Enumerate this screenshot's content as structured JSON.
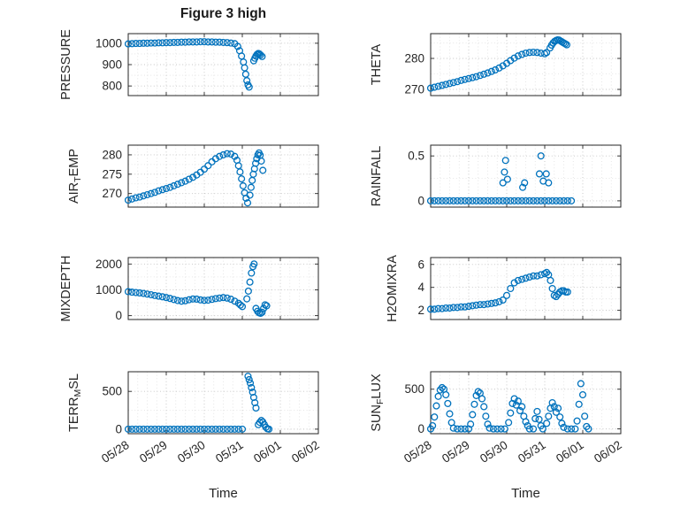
{
  "figure": {
    "title": "Figure 3 high",
    "xlabel": "Time",
    "xlim": [
      0,
      5
    ],
    "x_ticks": [
      0,
      1,
      2,
      3,
      4,
      5
    ],
    "x_tick_labels": [
      "05/28",
      "05/29",
      "05/30",
      "05/31",
      "06/01",
      "06/02"
    ],
    "marker_color": "#0072BD",
    "axis_color": "#262626",
    "text_color": "#262626",
    "grid_color": "#c4c4c4",
    "minor_grid_color": "#e0e0e0"
  },
  "chart_data": [
    {
      "id": "pressure",
      "type": "scatter",
      "ylabel": [
        {
          "t": "PRESSURE"
        }
      ],
      "yticks": [
        800,
        900,
        1000
      ],
      "yminor": [
        850,
        950
      ],
      "ylim": [
        755,
        1045
      ],
      "x": [
        0,
        0.1,
        0.2,
        0.3,
        0.4,
        0.5,
        0.6,
        0.7,
        0.8,
        0.9,
        1,
        1.1,
        1.2,
        1.3,
        1.4,
        1.5,
        1.6,
        1.7,
        1.8,
        1.9,
        2,
        2.1,
        2.2,
        2.3,
        2.4,
        2.5,
        2.6,
        2.7,
        2.8,
        2.88,
        2.93,
        2.98,
        3.03,
        3.06,
        3.09,
        3.12,
        3.15,
        3.18,
        3.3,
        3.33,
        3.36,
        3.39,
        3.42,
        3.45,
        3.48,
        3.52
      ],
      "y": [
        997,
        998,
        999,
        999,
        1000,
        1000,
        1001,
        1001,
        1002,
        1002,
        1003,
        1003,
        1004,
        1004,
        1005,
        1005,
        1006,
        1006,
        1006,
        1007,
        1007,
        1006,
        1006,
        1005,
        1005,
        1004,
        1003,
        1001,
        998,
        985,
        965,
        940,
        912,
        885,
        855,
        825,
        805,
        795,
        918,
        930,
        940,
        948,
        952,
        950,
        945,
        938
      ]
    },
    {
      "id": "theta",
      "type": "scatter",
      "ylabel": [
        {
          "t": "THETA"
        }
      ],
      "yticks": [
        270,
        280
      ],
      "yminor": [
        275,
        285
      ],
      "ylim": [
        268,
        288
      ],
      "x": [
        0,
        0.1,
        0.2,
        0.3,
        0.4,
        0.5,
        0.6,
        0.7,
        0.8,
        0.9,
        1,
        1.1,
        1.2,
        1.3,
        1.4,
        1.5,
        1.6,
        1.7,
        1.8,
        1.9,
        2,
        2.1,
        2.2,
        2.3,
        2.4,
        2.5,
        2.6,
        2.7,
        2.8,
        2.9,
        3,
        3.05,
        3.14,
        3.18,
        3.22,
        3.26,
        3.3,
        3.34,
        3.38,
        3.42,
        3.46,
        3.5,
        3.54,
        3.58
      ],
      "y": [
        270.4,
        270.7,
        271,
        271.3,
        271.6,
        271.9,
        272.2,
        272.5,
        272.9,
        273.2,
        273.5,
        273.8,
        274.1,
        274.5,
        274.9,
        275.3,
        275.8,
        276.3,
        276.9,
        277.6,
        278.4,
        279.3,
        280.1,
        280.8,
        281.3,
        281.7,
        281.9,
        282,
        281.9,
        281.7,
        281.5,
        281.9,
        283.4,
        284.3,
        285,
        285.5,
        285.8,
        286,
        285.9,
        285.6,
        285.3,
        285,
        284.7,
        284.4
      ]
    },
    {
      "id": "air-temp",
      "type": "scatter",
      "ylabel": [
        {
          "t": "AIR"
        },
        {
          "t": "T",
          "sub": true
        },
        {
          "t": "EMP"
        }
      ],
      "yticks": [
        270,
        275,
        280
      ],
      "yminor": [
        267.5,
        272.5,
        277.5
      ],
      "ylim": [
        266.5,
        282.5
      ],
      "x": [
        0,
        0.1,
        0.2,
        0.3,
        0.4,
        0.5,
        0.6,
        0.7,
        0.8,
        0.9,
        1,
        1.1,
        1.2,
        1.3,
        1.4,
        1.5,
        1.6,
        1.7,
        1.8,
        1.9,
        2,
        2.1,
        2.2,
        2.3,
        2.4,
        2.5,
        2.6,
        2.7,
        2.8,
        2.86,
        2.9,
        2.94,
        2.98,
        3.02,
        3.06,
        3.1,
        3.14,
        3.2,
        3.23,
        3.26,
        3.29,
        3.32,
        3.35,
        3.38,
        3.41,
        3.44,
        3.47,
        3.5,
        3.54
      ],
      "y": [
        268.3,
        268.6,
        268.9,
        269.1,
        269.4,
        269.7,
        270,
        270.3,
        270.7,
        271,
        271.3,
        271.6,
        272,
        272.4,
        272.8,
        273.2,
        273.7,
        274.2,
        274.8,
        275.5,
        276.3,
        277.2,
        278.2,
        279,
        279.6,
        280,
        280.3,
        280.2,
        279.6,
        278.6,
        277.2,
        275.6,
        273.8,
        272,
        270.2,
        268.8,
        267.6,
        269.6,
        271.6,
        273.4,
        275,
        276.4,
        277.8,
        279,
        280,
        280.5,
        279.9,
        278.4,
        276
      ]
    },
    {
      "id": "rainfall",
      "type": "scatter",
      "ylabel": [
        {
          "t": "RAINFALL"
        }
      ],
      "yticks": [
        0,
        0.5
      ],
      "yminor": [
        0.25
      ],
      "ylim": [
        -0.07,
        0.62
      ],
      "x": [
        0,
        0.1,
        0.2,
        0.3,
        0.4,
        0.5,
        0.6,
        0.7,
        0.8,
        0.9,
        1,
        1.1,
        1.2,
        1.3,
        1.4,
        1.5,
        1.6,
        1.7,
        1.8,
        1.9,
        2,
        2.1,
        2.2,
        2.3,
        2.4,
        2.5,
        2.6,
        2.7,
        2.8,
        2.9,
        3,
        3.1,
        3.2,
        3.3,
        3.4,
        3.5,
        3.6,
        3.7,
        1.9,
        1.94,
        1.97,
        2.02,
        2.42,
        2.47,
        2.86,
        2.9,
        2.96,
        3.04,
        3.1
      ],
      "y": [
        0,
        0,
        0,
        0,
        0,
        0,
        0,
        0,
        0,
        0,
        0,
        0,
        0,
        0,
        0,
        0,
        0,
        0,
        0,
        0,
        0,
        0,
        0,
        0,
        0,
        0,
        0,
        0,
        0,
        0,
        0,
        0,
        0,
        0,
        0,
        0,
        0,
        0,
        0.2,
        0.32,
        0.45,
        0.24,
        0.15,
        0.2,
        0.3,
        0.5,
        0.22,
        0.3,
        0.2
      ]
    },
    {
      "id": "mixdepth",
      "type": "scatter",
      "ylabel": [
        {
          "t": "MIXDEPTH"
        }
      ],
      "yticks": [
        0,
        1000,
        2000
      ],
      "yminor": [
        500,
        1500
      ],
      "ylim": [
        -150,
        2250
      ],
      "x": [
        0,
        0.1,
        0.2,
        0.3,
        0.4,
        0.5,
        0.6,
        0.7,
        0.8,
        0.9,
        1,
        1.1,
        1.2,
        1.3,
        1.4,
        1.5,
        1.6,
        1.7,
        1.8,
        1.9,
        2,
        2.1,
        2.2,
        2.3,
        2.4,
        2.5,
        2.6,
        2.7,
        2.8,
        2.9,
        2.95,
        3,
        3.12,
        3.16,
        3.2,
        3.24,
        3.28,
        3.31,
        3.36,
        3.4,
        3.44,
        3.48,
        3.52,
        3.56,
        3.6,
        3.64
      ],
      "y": [
        930,
        910,
        895,
        880,
        860,
        835,
        810,
        780,
        755,
        730,
        700,
        665,
        625,
        585,
        560,
        575,
        615,
        645,
        640,
        610,
        590,
        600,
        630,
        660,
        680,
        700,
        680,
        635,
        560,
        480,
        410,
        350,
        650,
        950,
        1300,
        1650,
        1900,
        2000,
        280,
        170,
        110,
        90,
        130,
        280,
        420,
        380
      ]
    },
    {
      "id": "h2omixra",
      "type": "scatter",
      "ylabel": [
        {
          "t": "H2OMIXRA"
        }
      ],
      "yticks": [
        2,
        4,
        6
      ],
      "yminor": [
        3,
        5
      ],
      "ylim": [
        1.2,
        6.6
      ],
      "x": [
        0,
        0.1,
        0.2,
        0.3,
        0.4,
        0.5,
        0.6,
        0.7,
        0.8,
        0.9,
        1,
        1.1,
        1.2,
        1.3,
        1.4,
        1.5,
        1.6,
        1.7,
        1.8,
        1.9,
        2,
        2.1,
        2.2,
        2.3,
        2.4,
        2.5,
        2.6,
        2.7,
        2.8,
        2.9,
        3,
        3.05,
        3.1,
        3.15,
        3.2,
        3.25,
        3.3,
        3.35,
        3.4,
        3.45,
        3.5,
        3.55,
        3.6
      ],
      "y": [
        2.1,
        2.1,
        2.15,
        2.15,
        2.2,
        2.2,
        2.25,
        2.25,
        2.3,
        2.3,
        2.35,
        2.4,
        2.45,
        2.5,
        2.5,
        2.55,
        2.6,
        2.65,
        2.75,
        2.9,
        3.3,
        3.9,
        4.4,
        4.6,
        4.7,
        4.8,
        4.9,
        5,
        5,
        5.1,
        5.2,
        5.3,
        5.1,
        4.6,
        3.9,
        3.3,
        3.2,
        3.4,
        3.6,
        3.7,
        3.7,
        3.6,
        3.6
      ]
    },
    {
      "id": "terr-msl",
      "type": "scatter",
      "ylabel": [
        {
          "t": "TERR"
        },
        {
          "t": "M",
          "sub": true
        },
        {
          "t": "SL"
        }
      ],
      "yticks": [
        0,
        500
      ],
      "yminor": [
        250
      ],
      "ylim": [
        -60,
        760
      ],
      "x": [
        0,
        0.1,
        0.2,
        0.3,
        0.4,
        0.5,
        0.6,
        0.7,
        0.8,
        0.9,
        1,
        1.1,
        1.2,
        1.3,
        1.4,
        1.5,
        1.6,
        1.7,
        1.8,
        1.9,
        2,
        2.1,
        2.2,
        2.3,
        2.4,
        2.5,
        2.6,
        2.7,
        2.8,
        2.9,
        3,
        3.15,
        3.18,
        3.21,
        3.24,
        3.27,
        3.3,
        3.33,
        3.36,
        3.42,
        3.46,
        3.5,
        3.54,
        3.58,
        3.62,
        3.66,
        3.7
      ],
      "y": [
        0,
        0,
        0,
        0,
        0,
        0,
        0,
        0,
        0,
        0,
        0,
        0,
        0,
        0,
        0,
        0,
        0,
        0,
        0,
        0,
        0,
        0,
        0,
        0,
        0,
        0,
        0,
        0,
        0,
        0,
        0,
        700,
        655,
        610,
        550,
        490,
        420,
        350,
        280,
        60,
        90,
        115,
        95,
        60,
        25,
        5,
        0
      ]
    },
    {
      "id": "sun-flux",
      "type": "scatter",
      "ylabel": [
        {
          "t": "SUN"
        },
        {
          "t": "F",
          "sub": true
        },
        {
          "t": "LUX"
        }
      ],
      "yticks": [
        0,
        500
      ],
      "yminor": [
        250
      ],
      "ylim": [
        -60,
        720
      ],
      "x": [
        0,
        0.05,
        0.1,
        0.15,
        0.2,
        0.25,
        0.3,
        0.35,
        0.4,
        0.45,
        0.5,
        0.55,
        0.6,
        0.7,
        0.8,
        0.9,
        1,
        1.05,
        1.1,
        1.15,
        1.2,
        1.25,
        1.3,
        1.35,
        1.4,
        1.45,
        1.5,
        1.55,
        1.65,
        1.75,
        1.85,
        1.95,
        2.05,
        2.1,
        2.15,
        2.2,
        2.25,
        2.3,
        2.35,
        2.4,
        2.45,
        2.5,
        2.55,
        2.6,
        2.7,
        2.75,
        2.8,
        2.85,
        2.9,
        2.95,
        3.05,
        3.1,
        3.15,
        3.2,
        3.25,
        3.3,
        3.35,
        3.4,
        3.45,
        3.5,
        3.6,
        3.7,
        3.8,
        3.85,
        3.9,
        3.95,
        4,
        4.05,
        4.1,
        4.15
      ],
      "y": [
        0,
        40,
        150,
        290,
        410,
        490,
        520,
        500,
        430,
        320,
        190,
        80,
        10,
        0,
        0,
        0,
        0,
        60,
        180,
        310,
        420,
        470,
        450,
        380,
        280,
        160,
        60,
        10,
        0,
        0,
        0,
        0,
        80,
        200,
        320,
        380,
        300,
        350,
        230,
        280,
        160,
        90,
        40,
        0,
        0,
        130,
        220,
        120,
        40,
        0,
        70,
        160,
        260,
        330,
        280,
        210,
        260,
        150,
        70,
        20,
        0,
        0,
        0,
        100,
        310,
        570,
        430,
        160,
        30,
        0
      ]
    }
  ]
}
